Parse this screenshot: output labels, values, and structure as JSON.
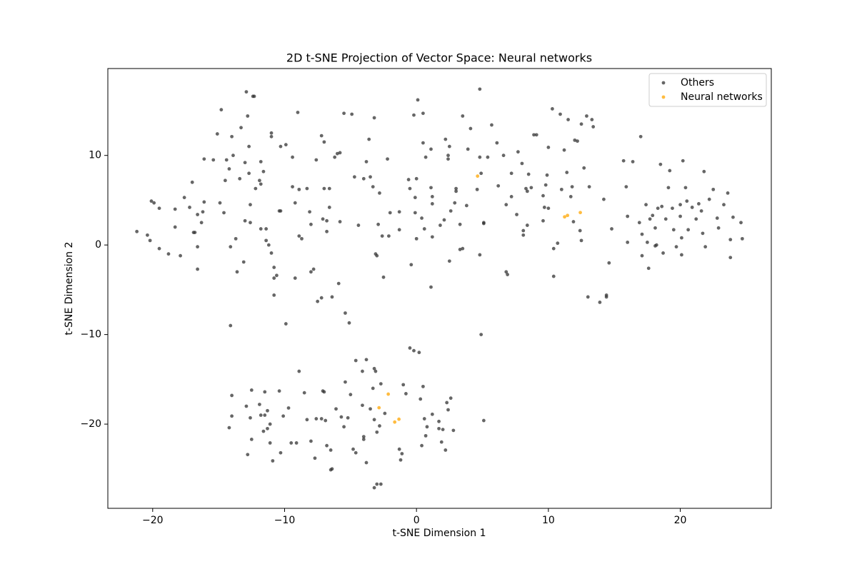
{
  "chart_data": {
    "type": "scatter",
    "title": "2D t-SNE Projection of Vector Space: Neural networks",
    "x_label": "t-SNE Dimension 1",
    "y_label": "t-SNE Dimension 2",
    "xlim": [
      -23.4,
      26.9
    ],
    "ylim": [
      -29.4,
      19.7
    ],
    "xticks": [
      {
        "value": -20,
        "label": "−20"
      },
      {
        "value": -10,
        "label": "−10"
      },
      0,
      10,
      20
    ],
    "yticks": [
      {
        "value": -20,
        "label": "−20"
      },
      {
        "value": -10,
        "label": "−10"
      },
      0,
      10
    ],
    "legend": "upper right",
    "series": [
      {
        "name": "Others",
        "color": "#333333",
        "x": [
          -21.2,
          -20.4,
          -20.2,
          -20.1,
          -19.9,
          -19.5,
          -19.5,
          -18.8,
          -18.3,
          -18.3,
          -17.9,
          -17.6,
          -17.2,
          -17.0,
          -16.9,
          -16.8,
          -16.6,
          -16.6,
          -16.6,
          -16.3,
          -16.2,
          -16.1,
          -16.1,
          -15.4,
          -15.1,
          -14.9,
          -14.8,
          -14.6,
          -14.5,
          -14.4,
          -14.2,
          -14.1,
          -14.0,
          -13.9,
          -13.7,
          -13.6,
          -13.4,
          -13.3,
          -13.1,
          -13.0,
          -13.0,
          -12.9,
          -12.8,
          -12.7,
          -12.7,
          -12.6,
          -12.6,
          -12.4,
          -12.3,
          -12.2,
          -11.9,
          -11.8,
          -11.8,
          -11.8,
          -11.6,
          -11.4,
          -11.4,
          -11.2,
          -11.0,
          -11.0,
          -11.0,
          -10.8,
          -10.8,
          -10.8,
          -10.6,
          -10.4,
          -10.3,
          -10.3,
          -9.9,
          -9.9,
          -9.4,
          -9.4,
          -9.2,
          -9.2,
          -9.0,
          -8.9,
          -8.9,
          -8.7,
          -8.3,
          -8.1,
          -8.0,
          -8.0,
          -7.8,
          -7.6,
          -7.5,
          -7.2,
          -7.2,
          -7.1,
          -7.0,
          -7.0,
          -6.8,
          -6.8,
          -6.6,
          -6.6,
          -6.4,
          -6.2,
          -6.0,
          -5.8,
          -5.8,
          -5.9,
          -5.5,
          -5.4,
          -5.1,
          -4.9,
          -14.1,
          -4.7,
          -4.4,
          -4.0,
          -3.8,
          -3.6,
          -3.5,
          -3.3,
          -3.2,
          -3.1,
          -3.0,
          -2.9,
          -2.8,
          -2.6,
          -2.5,
          -2.2,
          -2.1,
          -2.0,
          -1.3,
          -1.3,
          -0.6,
          -0.5,
          -0.4,
          -0.2,
          -0.1,
          -0.1,
          0.0,
          0.0,
          0.1,
          0.4,
          0.5,
          0.5,
          0.6,
          0.7,
          1.1,
          1.1,
          1.1,
          1.2,
          1.2,
          1.2,
          1.8,
          2.1,
          2.2,
          2.4,
          2.4,
          2.5,
          2.5,
          2.6,
          2.9,
          3.0,
          3.0,
          3.3,
          3.3,
          3.5,
          3.5,
          3.8,
          3.9,
          4.1,
          4.6,
          4.8,
          4.8,
          4.8,
          4.9,
          5.1,
          5.1,
          5.4,
          5.7,
          6.1,
          6.2,
          6.6,
          6.8,
          6.8,
          6.9,
          7.2,
          7.2,
          7.6,
          7.7,
          8.0,
          8.1,
          8.1,
          8.3,
          8.4,
          8.4,
          8.5,
          8.7,
          8.9,
          9.1,
          9.6,
          9.6,
          9.7,
          9.8,
          9.9,
          10.0,
          10.0,
          10.3,
          10.4,
          10.4,
          10.7,
          10.9,
          11.0,
          11.2,
          11.4,
          11.5,
          11.7,
          11.8,
          11.9,
          12.0,
          12.2,
          12.4,
          12.5,
          12.5,
          12.7,
          12.9,
          13.0,
          13.1,
          13.3,
          13.4,
          13.9,
          14.2,
          14.4,
          14.4,
          14.6,
          14.8,
          4.9,
          15.7,
          15.9,
          16.0,
          16.0,
          16.4,
          16.9,
          17.0,
          17.1,
          17.1,
          17.4,
          17.5,
          17.6,
          17.7,
          17.9,
          18.1,
          18.1,
          18.2,
          18.3,
          18.5,
          18.6,
          18.7,
          18.9,
          19.1,
          19.2,
          19.4,
          19.5,
          19.7,
          20.0,
          20.0,
          20.1,
          20.1,
          20.2,
          20.4,
          20.5,
          20.6,
          20.9,
          21.2,
          21.4,
          21.6,
          21.7,
          21.8,
          21.9,
          22.2,
          22.5,
          22.8,
          22.9,
          23.3,
          23.6,
          23.8,
          23.8,
          24.0,
          24.6,
          24.7,
          -0.5,
          -0.2,
          0.2,
          -4.6,
          -3.8,
          -3.2,
          -3.1,
          -4.1,
          -8.9,
          -5.4,
          -2.7,
          -1.0,
          0.5,
          -12.5,
          -14.0,
          -11.5,
          -10.4,
          -7.1,
          -8.5,
          -7.0,
          -5.0,
          -3.3,
          -0.8,
          0.3,
          2.6,
          -12.9,
          -11.9,
          -11.3,
          -9.7,
          -6.1,
          -4.1,
          -3.5,
          -2.4,
          2.3,
          -14.0,
          -12.6,
          -11.8,
          -11.5,
          -10.1,
          -8.3,
          -7.6,
          -7.2,
          -6.9,
          -5.7,
          -5.2,
          -3.2,
          -2.8,
          0.6,
          1.7,
          2.4,
          -14.2,
          -11.6,
          -11.3,
          -11.1,
          -8.0,
          -6.8,
          -5.5,
          -4.0,
          -4.0,
          -3.0,
          0.8,
          1.7,
          1.9,
          2.0,
          2.8,
          -12.5,
          -11.1,
          -10.3,
          -9.5,
          -9.1,
          -6.5,
          -4.8,
          -4.6,
          -1.3,
          -1.1,
          0.4,
          0.7,
          2.2,
          -12.8,
          -10.9,
          -7.7,
          -3.8,
          -1.2,
          -6.5,
          -6.4,
          -3.0,
          -2.7,
          -3.2,
          5.1,
          1.2
        ],
        "values": [
          1.5,
          1.1,
          0.5,
          4.9,
          4.7,
          4.1,
          -0.4,
          -1.0,
          4.0,
          2.0,
          -1.2,
          5.3,
          4.2,
          7.0,
          1.4,
          1.4,
          -0.2,
          3.4,
          -2.7,
          2.5,
          3.7,
          9.6,
          4.8,
          9.5,
          12.4,
          4.7,
          15.1,
          3.6,
          7.2,
          9.5,
          8.5,
          -0.2,
          12.1,
          10.0,
          0.7,
          -3.0,
          7.4,
          13.1,
          -1.9,
          9.2,
          2.7,
          17.1,
          14.4,
          11.0,
          8.0,
          4.5,
          2.5,
          16.6,
          16.6,
          6.3,
          7.2,
          6.8,
          9.3,
          1.8,
          8.2,
          1.8,
          0.5,
          0.0,
          12.5,
          12.1,
          -0.9,
          -3.7,
          -2.5,
          -5.6,
          -3.4,
          3.8,
          3.8,
          11.0,
          11.2,
          -8.8,
          9.8,
          6.5,
          4.7,
          -3.7,
          14.8,
          6.2,
          1.0,
          0.7,
          6.3,
          3.7,
          2.3,
          -3.0,
          -2.7,
          9.5,
          -6.3,
          -5.9,
          12.2,
          2.9,
          11.5,
          6.3,
          2.7,
          1.5,
          4.2,
          6.3,
          -5.8,
          9.8,
          10.2,
          10.3,
          2.6,
          -4.3,
          14.7,
          -7.6,
          -8.7,
          14.6,
          -9.0,
          7.6,
          2.2,
          7.4,
          9.3,
          11.8,
          7.6,
          6.5,
          14.2,
          -1.0,
          -1.2,
          2.3,
          5.8,
          1.0,
          -3.6,
          9.6,
          1.0,
          3.6,
          3.7,
          1.7,
          7.3,
          6.3,
          -2.2,
          14.5,
          5.3,
          3.6,
          0.7,
          7.4,
          16.2,
          3.0,
          14.7,
          11.4,
          1.8,
          9.8,
          6.4,
          10.7,
          -4.7,
          5.4,
          4.6,
          0.9,
          2.2,
          2.8,
          11.8,
          10.0,
          9.6,
          11.0,
          -1.8,
          3.8,
          4.7,
          6.3,
          6.0,
          2.3,
          -0.5,
          -0.4,
          14.4,
          4.4,
          10.7,
          13.0,
          6.2,
          -1.1,
          17.4,
          9.8,
          8.0,
          2.4,
          2.5,
          9.8,
          13.4,
          11.4,
          6.6,
          10.0,
          4.5,
          -3.0,
          -3.3,
          8.0,
          5.4,
          3.4,
          10.4,
          9.1,
          1.1,
          1.6,
          6.3,
          2.2,
          6.0,
          7.9,
          6.4,
          12.3,
          12.3,
          5.5,
          2.7,
          4.2,
          6.7,
          7.8,
          4.1,
          10.9,
          15.2,
          -3.5,
          -0.4,
          0.2,
          14.6,
          6.2,
          10.6,
          8.1,
          14.0,
          5.4,
          6.5,
          2.6,
          11.7,
          11.6,
          1.6,
          13.5,
          0.5,
          8.6,
          14.4,
          -5.8,
          6.5,
          14.0,
          13.2,
          -6.4,
          5.1,
          -5.6,
          -5.8,
          -2.0,
          1.8,
          -10.0,
          9.4,
          6.5,
          3.2,
          0.3,
          9.3,
          2.5,
          12.1,
          1.2,
          -1.2,
          4.5,
          0.3,
          -2.6,
          2.9,
          3.3,
          1.9,
          -0.1,
          0.0,
          4.1,
          9.0,
          4.3,
          -0.9,
          2.9,
          6.4,
          8.3,
          4.1,
          1.7,
          -0.2,
          4.5,
          3.2,
          -1.1,
          0.8,
          9.4,
          6.4,
          4.9,
          1.7,
          4.2,
          2.9,
          4.6,
          3.8,
          1.3,
          8.2,
          -0.2,
          5.1,
          6.2,
          3.0,
          1.9,
          4.5,
          5.8,
          0.6,
          -1.4,
          3.1,
          2.5,
          0.7,
          -11.5,
          -11.8,
          -12.0,
          -12.9,
          -12.8,
          -13.8,
          -14.1,
          -14.1,
          -14.1,
          -15.3,
          -15.5,
          -15.6,
          -15.8,
          -16.2,
          -16.8,
          -16.4,
          -16.3,
          -16.3,
          -16.5,
          -16.4,
          -16.7,
          -16.0,
          -16.6,
          -17.2,
          -17.1,
          -18.0,
          -17.8,
          -18.5,
          -18.2,
          -18.3,
          -17.9,
          -18.3,
          -18.8,
          -17.6,
          -19.1,
          -19.3,
          -19.0,
          -19.0,
          -19.1,
          -19.5,
          -19.4,
          -19.4,
          -19.6,
          -19.2,
          -19.3,
          -19.5,
          -20.2,
          -19.4,
          -19.7,
          -18.4,
          -20.4,
          -20.8,
          -20.5,
          -20.0,
          -21.9,
          -22.4,
          -20.3,
          -21.4,
          -21.7,
          -20.9,
          -20.3,
          -20.5,
          -22.0,
          -20.6,
          -20.7,
          -21.7,
          -22.1,
          -23.2,
          -22.1,
          -22.1,
          -22.9,
          -22.8,
          -23.2,
          -22.8,
          -23.3,
          -22.4,
          -21.3,
          -22.9,
          -23.4,
          -24.1,
          -23.8,
          -24.3,
          -24.0,
          -25.1,
          -25.0,
          -26.7,
          -26.7,
          -27.1,
          -19.6,
          -18.9
        ]
      },
      {
        "name": "Neural networks",
        "color": "#ffa500",
        "x": [
          4.63,
          11.23,
          11.45,
          12.42,
          -2.14,
          -2.84,
          -1.33,
          -1.65
        ],
        "values": [
          7.69,
          3.14,
          3.3,
          3.62,
          -16.65,
          -18.17,
          -19.45,
          -19.77
        ]
      }
    ]
  }
}
